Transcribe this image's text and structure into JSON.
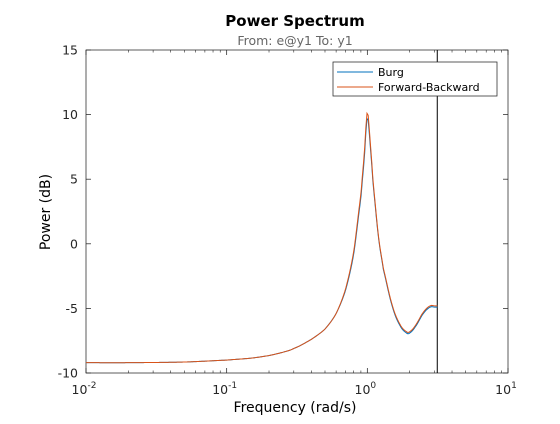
{
  "chart_data": {
    "type": "line",
    "title": "Power Spectrum",
    "subtitle": "From: e@y1  To: y1",
    "xlabel": "Frequency  (rad/s)",
    "ylabel": "Power (dB)",
    "xscale": "log",
    "xlim": [
      0.01,
      10
    ],
    "ylim": [
      -10,
      15
    ],
    "x_ticks": [
      {
        "base": "10",
        "exp": "-2",
        "value": 0.01
      },
      {
        "base": "10",
        "exp": "-1",
        "value": 0.1
      },
      {
        "base": "10",
        "exp": "0",
        "value": 1
      },
      {
        "base": "10",
        "exp": "1",
        "value": 10
      }
    ],
    "y_ticks": [
      -10,
      -5,
      0,
      5,
      10,
      15
    ],
    "grid": false,
    "legend_position": "top-right",
    "nyquist_line_x": 3.1416,
    "series": [
      {
        "name": "Burg",
        "color": "#0072BD",
        "x": [
          0.01,
          0.02,
          0.05,
          0.1,
          0.15,
          0.2,
          0.25,
          0.3,
          0.4,
          0.5,
          0.6,
          0.7,
          0.8,
          0.9,
          0.95,
          1.0,
          1.05,
          1.1,
          1.2,
          1.3,
          1.5,
          1.7,
          1.9,
          2.0,
          2.2,
          2.5,
          2.8,
          3.0,
          3.1416
        ],
        "y": [
          -9.2,
          -9.2,
          -9.15,
          -9.0,
          -8.85,
          -8.65,
          -8.4,
          -8.1,
          -7.4,
          -6.6,
          -5.4,
          -3.6,
          -0.8,
          3.5,
          6.5,
          9.8,
          7.5,
          4.5,
          0.5,
          -2.0,
          -4.8,
          -6.3,
          -6.9,
          -6.9,
          -6.4,
          -5.4,
          -4.9,
          -4.9,
          -4.9
        ]
      },
      {
        "name": "Forward-Backward",
        "color": "#D95319",
        "x": [
          0.01,
          0.02,
          0.05,
          0.1,
          0.15,
          0.2,
          0.25,
          0.3,
          0.4,
          0.5,
          0.6,
          0.7,
          0.8,
          0.9,
          0.95,
          1.0,
          1.05,
          1.1,
          1.2,
          1.3,
          1.5,
          1.7,
          1.9,
          2.0,
          2.2,
          2.5,
          2.8,
          3.0,
          3.1416
        ],
        "y": [
          -9.2,
          -9.2,
          -9.15,
          -9.0,
          -8.85,
          -8.65,
          -8.4,
          -8.1,
          -7.4,
          -6.6,
          -5.4,
          -3.5,
          -0.6,
          3.8,
          6.9,
          10.2,
          7.8,
          4.7,
          0.6,
          -1.9,
          -4.7,
          -6.2,
          -6.8,
          -6.8,
          -6.3,
          -5.3,
          -4.8,
          -4.8,
          -4.8
        ]
      }
    ]
  }
}
